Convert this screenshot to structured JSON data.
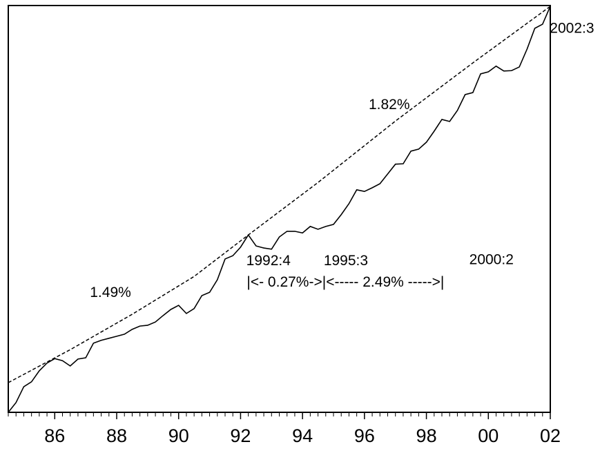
{
  "chart_data": {
    "type": "line",
    "xlim": [
      1985,
      2002.5
    ],
    "ylim": [
      0,
      100
    ],
    "xticks": [
      {
        "value": 1986.5,
        "label": "86"
      },
      {
        "value": 1988.5,
        "label": "88"
      },
      {
        "value": 1990.5,
        "label": "90"
      },
      {
        "value": 1992.5,
        "label": "92"
      },
      {
        "value": 1994.5,
        "label": "94"
      },
      {
        "value": 1996.5,
        "label": "96"
      },
      {
        "value": 1998.5,
        "label": "98"
      },
      {
        "value": 2000.5,
        "label": "00"
      },
      {
        "value": 2002.5,
        "label": "02"
      }
    ],
    "series": [
      {
        "color": "#000000",
        "dash": false,
        "x": [
          1985,
          1985.25,
          1985.5,
          1985.75,
          1986,
          1986.25,
          1986.5,
          1986.75,
          1987,
          1987.25,
          1987.5,
          1987.75,
          1988,
          1988.25,
          1988.5,
          1988.75,
          1989,
          1989.25,
          1989.5,
          1989.75,
          1990,
          1990.25,
          1990.5,
          1990.75,
          1991,
          1991.25,
          1991.5,
          1991.75,
          1992,
          1992.25,
          1992.5,
          1992.75,
          1993,
          1993.25,
          1993.5,
          1993.75,
          1994,
          1994.25,
          1994.5,
          1994.75,
          1995,
          1995.25,
          1995.5,
          1995.75,
          1996,
          1996.25,
          1996.5,
          1996.75,
          1997,
          1997.25,
          1997.5,
          1997.75,
          1998,
          1998.25,
          1998.5,
          1998.75,
          1999,
          1999.25,
          1999.5,
          1999.75,
          2000,
          2000.25,
          2000.5,
          2000.75,
          2001,
          2001.25,
          2001.5,
          2001.75,
          2002,
          2002.25,
          2002.5
        ],
        "values": [
          0,
          2.4,
          6.3,
          7.5,
          10.2,
          12.1,
          13.2,
          12.7,
          11.4,
          13.1,
          13.4,
          17.0,
          17.7,
          18.2,
          18.7,
          19.2,
          20.4,
          21.2,
          21.4,
          22.2,
          23.8,
          25.3,
          26.3,
          24.3,
          25.5,
          28.7,
          29.5,
          32.6,
          37.7,
          38.5,
          40.6,
          43.6,
          40.9,
          40.4,
          40.1,
          43.1,
          44.5,
          44.5,
          44.1,
          45.7,
          45.0,
          45.7,
          46.2,
          48.6,
          51.3,
          54.7,
          54.3,
          55.2,
          56.2,
          58.6,
          61.0,
          61.1,
          64.2,
          64.7,
          66.4,
          69.1,
          72.0,
          71.5,
          74.2,
          78.1,
          78.6,
          83.2,
          83.7,
          85.1,
          83.9,
          84.0,
          84.9,
          89.3,
          94.4,
          95.4,
          99.8
        ]
      },
      {
        "color": "#000000",
        "dash": true,
        "x": [
          1985,
          1987,
          1989,
          1991,
          1992.75,
          1995,
          1997.5,
          2000,
          2002.5
        ],
        "values": [
          7.3,
          15.4,
          24.1,
          33.4,
          43.6,
          56.5,
          71.6,
          85.9,
          99.8
        ]
      }
    ],
    "annotations": [
      {
        "text": "1.49%",
        "x": 1988.3,
        "y": 29.3
      },
      {
        "text": "1.82%",
        "x": 1997.3,
        "y": 75.5
      },
      {
        "text": "1992:4",
        "x": 1993.4,
        "y": 37.1
      },
      {
        "text": "1995:3",
        "x": 1995.9,
        "y": 37.1
      },
      {
        "text": "2000:2",
        "x": 2000.6,
        "y": 37.4
      },
      {
        "text": "2002:3",
        "x": 2003.2,
        "y": 94.2
      },
      {
        "text": "|<- 0.27%->|<----- 2.49% ----->|",
        "x": 1992.7,
        "y": 31.8
      }
    ]
  }
}
